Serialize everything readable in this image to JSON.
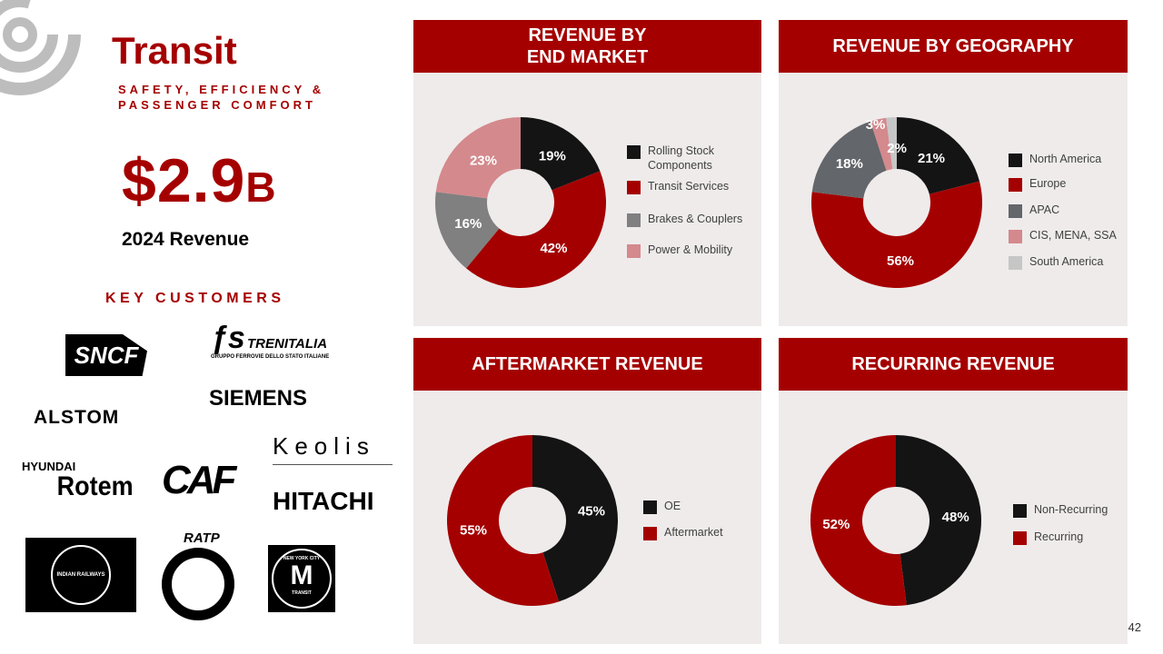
{
  "header": {
    "title": "Transit",
    "subtitle": "SAFETY, EFFICIENCY &\nPASSENGER COMFORT",
    "revenue_value": "$2.9",
    "revenue_unit": "B",
    "revenue_label": "2024 Revenue",
    "key_customers_label": "KEY CUSTOMERS"
  },
  "customers": [
    "SNCF",
    "TRENITALIA",
    "GRUPPO FERROVIE DELLO STATO ITALIANE",
    "SIEMENS",
    "ALSTOM",
    "Keolis",
    "HYUNDAI",
    "Rotem",
    "CAF",
    "HITACHI",
    "INDIAN RAILWAYS",
    "RATP",
    "NEW YORK CITY",
    "M",
    "TRANSIT"
  ],
  "colors": {
    "accent": "#a50000",
    "black": "#141414",
    "gray": "#808080",
    "pink": "#d4898d",
    "dark_gray": "#63666a",
    "light_gray": "#c6c6c6",
    "panel": "#efebeb"
  },
  "page_number": "42",
  "chart_data": [
    {
      "type": "pie",
      "donut": true,
      "title": "REVENUE BY\nEND MARKET",
      "categories": [
        "Rolling Stock Components",
        "Transit Services",
        "Brakes & Couplers",
        "Power & Mobility"
      ],
      "values": [
        19,
        42,
        16,
        23
      ],
      "labels": [
        "19%",
        "42%",
        "16%",
        "23%"
      ],
      "colors": [
        "#141414",
        "#a50000",
        "#808080",
        "#d4898d"
      ],
      "legend": "right"
    },
    {
      "type": "pie",
      "donut": true,
      "title": "REVENUE BY GEOGRAPHY",
      "categories": [
        "North America",
        "Europe",
        "APAC",
        "CIS, MENA, SSA",
        "South America"
      ],
      "values": [
        21,
        56,
        18,
        3,
        2
      ],
      "labels": [
        "21%",
        "56%",
        "18%",
        "3%",
        "2%"
      ],
      "colors": [
        "#141414",
        "#a50000",
        "#63666a",
        "#d4898d",
        "#c6c6c6"
      ],
      "legend": "right"
    },
    {
      "type": "pie",
      "donut": true,
      "title": "AFTERMARKET REVENUE",
      "categories": [
        "OE",
        "Aftermarket"
      ],
      "values": [
        45,
        55
      ],
      "labels": [
        "45%",
        "55%"
      ],
      "colors": [
        "#141414",
        "#a50000"
      ],
      "legend": "right"
    },
    {
      "type": "pie",
      "donut": true,
      "title": "RECURRING REVENUE",
      "categories": [
        "Non-Recurring",
        "Recurring"
      ],
      "values": [
        48,
        52
      ],
      "labels": [
        "48%",
        "52%"
      ],
      "colors": [
        "#141414",
        "#a50000"
      ],
      "legend": "right"
    }
  ]
}
